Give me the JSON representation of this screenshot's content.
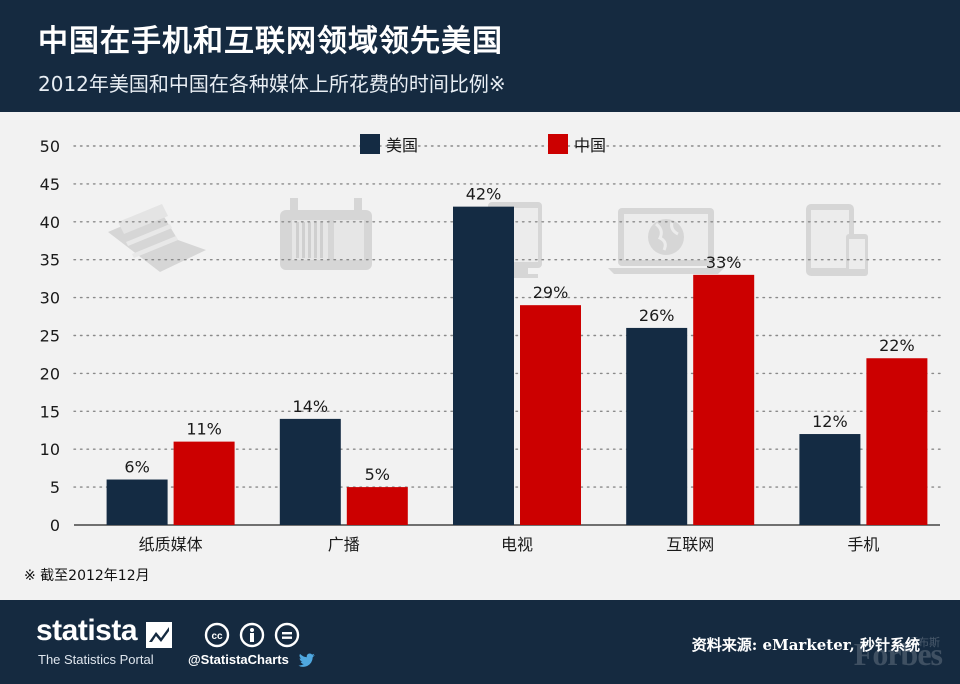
{
  "header": {
    "title": "中国在手机和互联网领域领先美国",
    "subtitle": "2012年美国和中国在各种媒体上所花费的时间比例※"
  },
  "footnote": "※ 截至2012年12月",
  "footer": {
    "brand": "statista",
    "tagline": "The Statistics Portal",
    "social": "@StatistaCharts",
    "source": "资料来源: eMarketer, 秒针系统",
    "watermark": "Forbes",
    "watermark_cn": "福布斯",
    "icons": [
      "cc-icon",
      "attribution-icon",
      "no-derivatives-icon",
      "twitter-icon"
    ]
  },
  "colors": {
    "header_bg": "#152a40",
    "usa": "#142b43",
    "china": "#cc0000",
    "background": "#f2f2f2",
    "pictogram": "#d6d6d6"
  },
  "chart_data": {
    "type": "bar",
    "categories": [
      "纸质媒体",
      "广播",
      "电视",
      "互联网",
      "手机"
    ],
    "category_icons": [
      "newspaper-icon",
      "radio-icon",
      "tv-icon",
      "laptop-globe-icon",
      "tablet-phone-icon"
    ],
    "series": [
      {
        "name": "美国",
        "values": [
          6,
          14,
          42,
          26,
          12
        ],
        "labels": [
          "6%",
          "14%",
          "42%",
          "26%",
          "12%"
        ]
      },
      {
        "name": "中国",
        "values": [
          11,
          5,
          29,
          33,
          22
        ],
        "labels": [
          "11%",
          "5%",
          "29%",
          "33%",
          "22%"
        ]
      }
    ],
    "ylim": [
      0,
      50
    ],
    "yticks": [
      0,
      5,
      10,
      15,
      20,
      25,
      30,
      35,
      40,
      45,
      50
    ],
    "grid": true,
    "legend": "top-center"
  }
}
